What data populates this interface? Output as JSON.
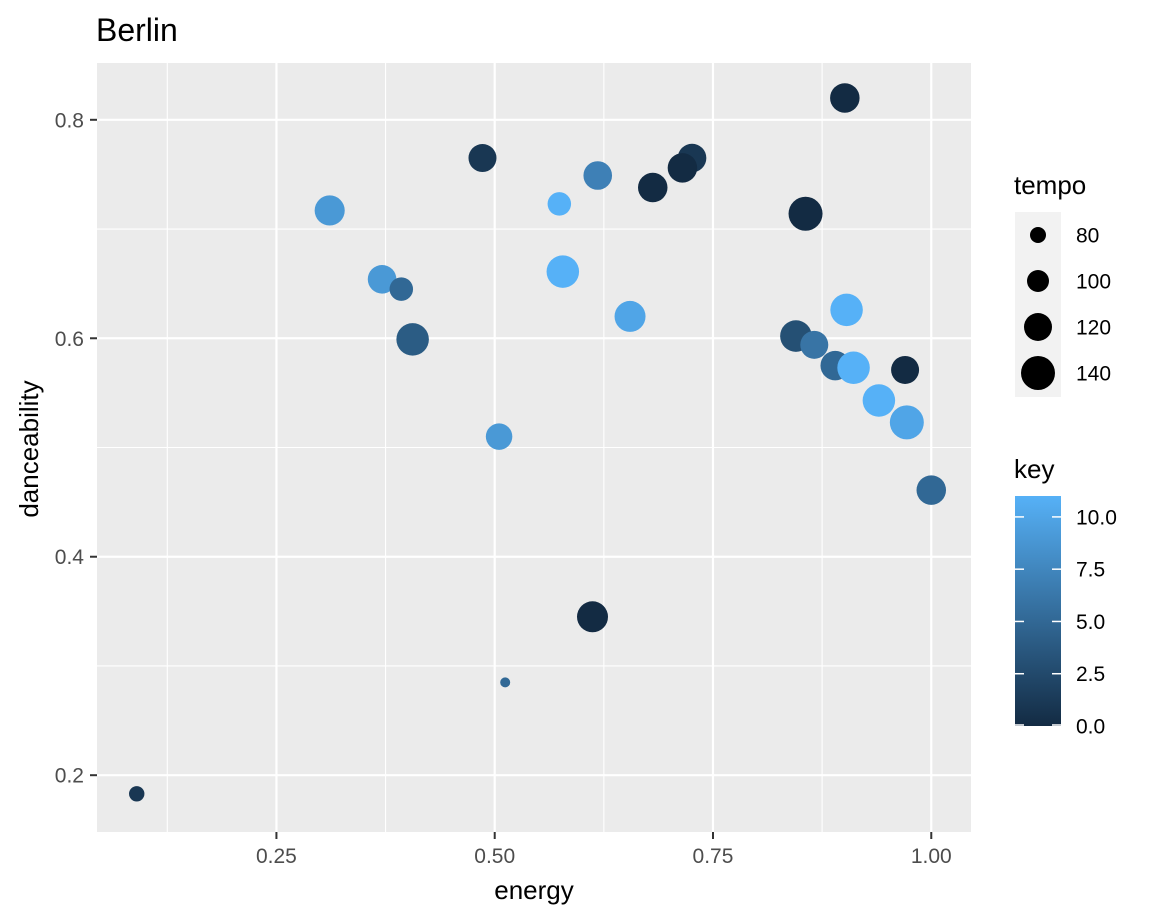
{
  "chart_data": {
    "type": "scatter",
    "title": "Berlin",
    "xlabel": "energy",
    "ylabel": "danceability",
    "xlim": [
      0.09,
      1.0
    ],
    "ylim": [
      0.18,
      0.82
    ],
    "x_ticks": [
      0.25,
      0.5,
      0.75,
      1.0
    ],
    "x_tick_labels": [
      "0.25",
      "0.50",
      "0.75",
      "1.00"
    ],
    "y_ticks": [
      0.2,
      0.4,
      0.6,
      0.8
    ],
    "y_tick_labels": [
      "0.2",
      "0.4",
      "0.6",
      "0.8"
    ],
    "grid": true,
    "color_scale": {
      "low": "#132B43",
      "high": "#56B1F7"
    },
    "points": [
      {
        "energy": 0.901,
        "danceability": 0.82,
        "tempo": 125,
        "key": 0
      },
      {
        "energy": 0.486,
        "danceability": 0.765,
        "tempo": 120,
        "key": 1
      },
      {
        "energy": 0.726,
        "danceability": 0.765,
        "tempo": 122,
        "key": 1
      },
      {
        "energy": 0.715,
        "danceability": 0.756,
        "tempo": 125,
        "key": 0
      },
      {
        "energy": 0.618,
        "danceability": 0.749,
        "tempo": 122,
        "key": 7
      },
      {
        "energy": 0.681,
        "danceability": 0.738,
        "tempo": 125,
        "key": 0
      },
      {
        "energy": 0.574,
        "danceability": 0.723,
        "tempo": 105,
        "key": 11
      },
      {
        "energy": 0.311,
        "danceability": 0.717,
        "tempo": 127,
        "key": 9
      },
      {
        "energy": 0.856,
        "danceability": 0.714,
        "tempo": 140,
        "key": 0
      },
      {
        "energy": 0.578,
        "danceability": 0.661,
        "tempo": 135,
        "key": 11
      },
      {
        "energy": 0.371,
        "danceability": 0.654,
        "tempo": 122,
        "key": 9
      },
      {
        "energy": 0.393,
        "danceability": 0.645,
        "tempo": 105,
        "key": 5
      },
      {
        "energy": 0.903,
        "danceability": 0.626,
        "tempo": 135,
        "key": 11
      },
      {
        "energy": 0.655,
        "danceability": 0.62,
        "tempo": 130,
        "key": 10
      },
      {
        "energy": 0.845,
        "danceability": 0.602,
        "tempo": 132,
        "key": 3
      },
      {
        "energy": 0.406,
        "danceability": 0.599,
        "tempo": 135,
        "key": 4
      },
      {
        "energy": 0.866,
        "danceability": 0.594,
        "tempo": 120,
        "key": 6
      },
      {
        "energy": 0.89,
        "danceability": 0.575,
        "tempo": 125,
        "key": 5
      },
      {
        "energy": 0.911,
        "danceability": 0.573,
        "tempo": 135,
        "key": 11
      },
      {
        "energy": 0.97,
        "danceability": 0.571,
        "tempo": 120,
        "key": 0
      },
      {
        "energy": 0.94,
        "danceability": 0.543,
        "tempo": 135,
        "key": 11
      },
      {
        "energy": 0.972,
        "danceability": 0.523,
        "tempo": 140,
        "key": 10
      },
      {
        "energy": 0.505,
        "danceability": 0.51,
        "tempo": 115,
        "key": 9
      },
      {
        "energy": 1.0,
        "danceability": 0.461,
        "tempo": 125,
        "key": 5
      },
      {
        "energy": 0.612,
        "danceability": 0.345,
        "tempo": 130,
        "key": 0
      },
      {
        "energy": 0.512,
        "danceability": 0.285,
        "tempo": 60,
        "key": 5
      },
      {
        "energy": 0.09,
        "danceability": 0.183,
        "tempo": 78,
        "key": 1
      }
    ],
    "legends": [
      {
        "title": "tempo",
        "type": "size",
        "values": [
          80,
          100,
          120,
          140
        ],
        "labels": [
          "80",
          "100",
          "120",
          "140"
        ]
      },
      {
        "title": "key",
        "type": "color",
        "range": [
          0,
          11
        ],
        "breaks": [
          0,
          2.5,
          5,
          7.5,
          10
        ],
        "labels": [
          "0.0",
          "2.5",
          "5.0",
          "7.5",
          "10.0"
        ]
      }
    ],
    "legend_position": "right"
  }
}
